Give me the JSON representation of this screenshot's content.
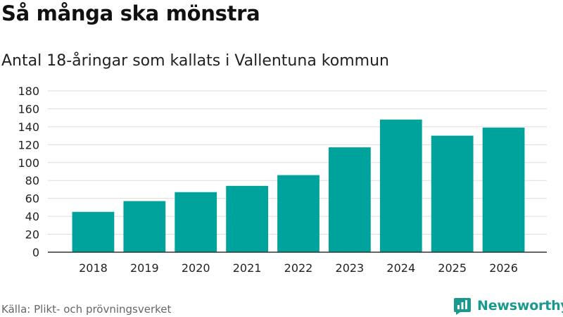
{
  "header": {
    "title": "Så många ska mönstra",
    "subtitle": "Antal 18-åringar som kallats i Vallentuna kommun"
  },
  "footer": {
    "source": "Källa: Plikt- och prövningsverket",
    "brand": "Newsworthy",
    "brand_icon": "newsworthy-logo-icon"
  },
  "colors": {
    "bar": "#00a39b",
    "grid": "#dddddd",
    "axis": "#333333",
    "brand": "#1a9a8e"
  },
  "chart_data": {
    "type": "bar",
    "title": "Så många ska mönstra",
    "subtitle": "Antal 18-åringar som kallats i Vallentuna kommun",
    "xlabel": "",
    "ylabel": "",
    "categories": [
      "2018",
      "2019",
      "2020",
      "2021",
      "2022",
      "2023",
      "2024",
      "2025",
      "2026"
    ],
    "values": [
      45,
      57,
      67,
      74,
      86,
      117,
      148,
      130,
      139
    ],
    "ylim": [
      0,
      180
    ],
    "yticks": [
      0,
      20,
      40,
      60,
      80,
      100,
      120,
      140,
      160,
      180
    ],
    "grid": true,
    "legend": "none"
  }
}
